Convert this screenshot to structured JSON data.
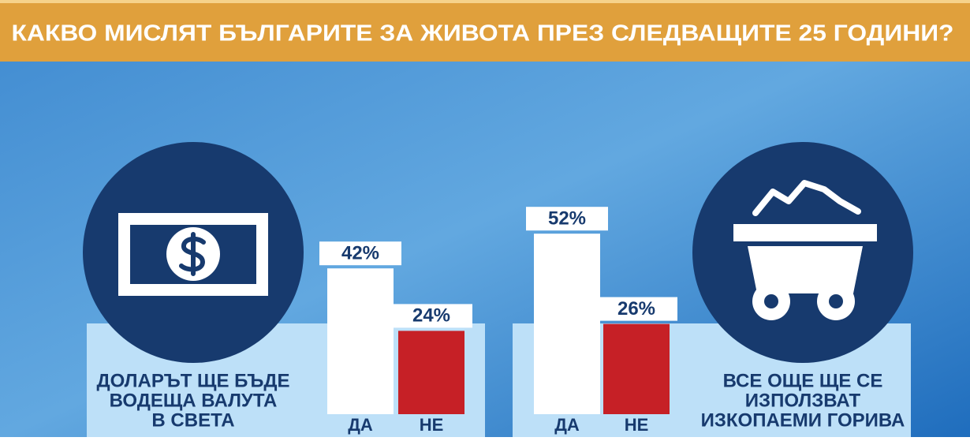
{
  "header": {
    "title": "КАКВО МИСЛЯТ БЪЛГАРИТЕ ЗА ЖИВОТА ПРЕЗ СЛЕДВАЩИТЕ 25 ГОДИНИ?"
  },
  "chart_data": [
    {
      "type": "bar",
      "title": [
        "ДОЛАРЪТ ЩЕ БЪДЕ",
        "ВОДЕЩА ВАЛУТА",
        "В СВЕТА"
      ],
      "categories": [
        "ДА",
        "НЕ"
      ],
      "values": [
        42,
        24
      ],
      "value_labels": [
        "42%",
        "24%"
      ],
      "colors": [
        "#ffffff",
        "#c62026"
      ]
    },
    {
      "type": "bar",
      "title": [
        "ВСЕ ОЩЕ ЩЕ СЕ",
        "ИЗПОЛЗВАТ",
        "ИЗКОПАЕМИ ГОРИВА"
      ],
      "categories": [
        "ДА",
        "НЕ"
      ],
      "values": [
        52,
        26
      ],
      "value_labels": [
        "52%",
        "26%"
      ],
      "colors": [
        "#ffffff",
        "#c62026"
      ]
    }
  ]
}
